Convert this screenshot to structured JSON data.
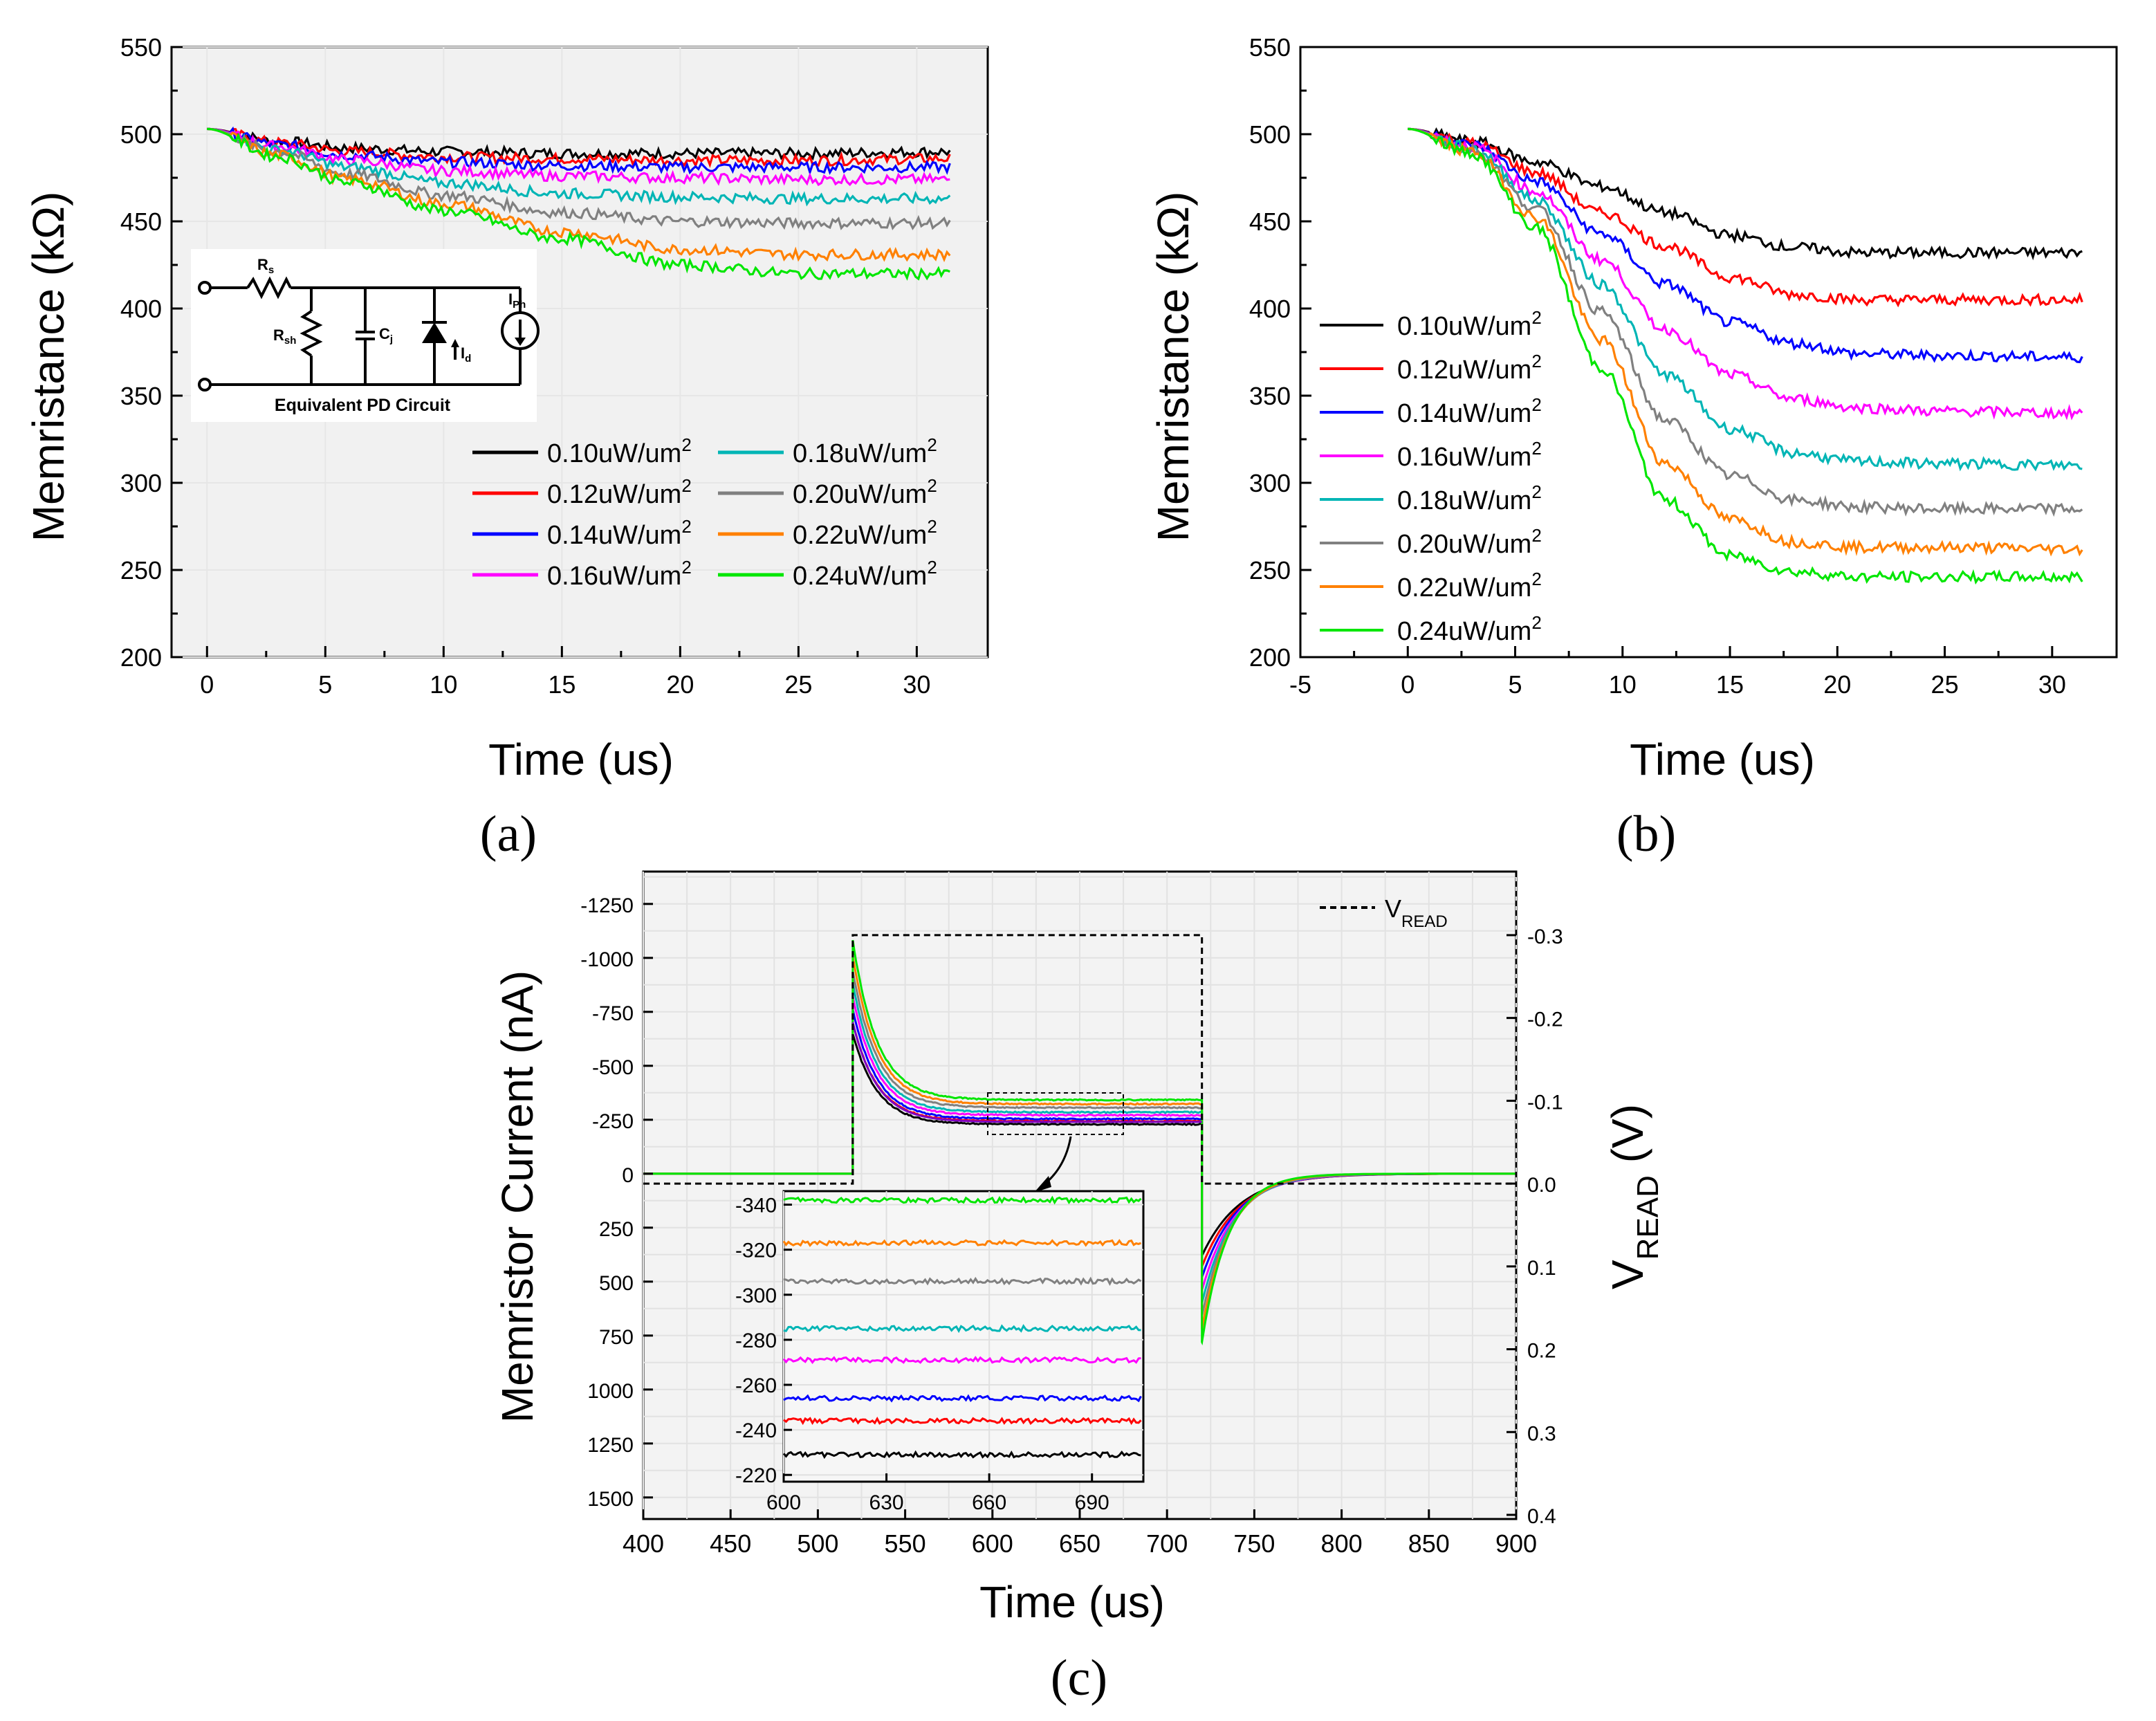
{
  "figure": {
    "panel_labels": [
      "(a)",
      "(b)",
      "(c)"
    ]
  },
  "inset_circuit": {
    "title": "Equivalent PD Circuit",
    "labels": {
      "rs": "R",
      "rs_sub": "s",
      "rsh": "R",
      "rsh_sub": "sh",
      "cj": "C",
      "cj_sub": "j",
      "id": "I",
      "id_sub": "d",
      "iph": "I",
      "iph_sub": "Ph"
    }
  },
  "colors": {
    "0.10": "#000000",
    "0.12": "#ff0000",
    "0.14": "#0000ff",
    "0.16": "#ff00ff",
    "0.18": "#00b5b5",
    "0.20": "#808080",
    "0.22": "#ff8000",
    "0.24": "#00e600",
    "grid": "#e6e6e6",
    "plot_bg": "#ebebeb",
    "vread": "#000000",
    "purple": "#8000c0"
  },
  "chart_data": [
    {
      "id": "a",
      "type": "line",
      "xlabel": "Time (us)",
      "ylabel": "Memristance (kΩ)",
      "xlim": [
        -1.5,
        33
      ],
      "ylim": [
        200,
        550
      ],
      "xticks": [
        0,
        5,
        10,
        15,
        20,
        25,
        30
      ],
      "yticks": [
        200,
        250,
        300,
        350,
        400,
        450,
        500,
        550
      ],
      "grid": true,
      "legend_position": "bottom-right, two columns",
      "series": [
        {
          "name": "0.10uW/um",
          "sup": "2",
          "key": "0.10",
          "x": [
            0,
            3,
            6,
            10,
            15,
            20,
            25,
            31.4
          ],
          "values": [
            503,
            496,
            492,
            490,
            489,
            489,
            489,
            490
          ]
        },
        {
          "name": "0.12uW/um",
          "sup": "2",
          "key": "0.12",
          "x": [
            0,
            3,
            6,
            10,
            15,
            20,
            25,
            31.4
          ],
          "values": [
            503,
            495,
            490,
            487,
            486,
            485,
            485,
            486
          ]
        },
        {
          "name": "0.14uW/um",
          "sup": "2",
          "key": "0.14",
          "x": [
            0,
            3,
            6,
            10,
            15,
            20,
            25,
            31.4
          ],
          "values": [
            503,
            494,
            488,
            484,
            482,
            481,
            481,
            481
          ]
        },
        {
          "name": "0.16uW/um",
          "sup": "2",
          "key": "0.16",
          "x": [
            0,
            3,
            6,
            10,
            15,
            20,
            25,
            31.4
          ],
          "values": [
            503,
            493,
            485,
            479,
            476,
            475,
            474,
            474
          ]
        },
        {
          "name": "0.18uW/um",
          "sup": "2",
          "key": "0.18",
          "x": [
            0,
            3,
            6,
            10,
            15,
            20,
            25,
            31.4
          ],
          "values": [
            503,
            491,
            481,
            472,
            466,
            464,
            463,
            463
          ]
        },
        {
          "name": "0.20uW/um",
          "sup": "2",
          "key": "0.20",
          "x": [
            0,
            3,
            6,
            10,
            15,
            20,
            25,
            31.4
          ],
          "values": [
            503,
            490,
            477,
            465,
            455,
            450,
            449,
            449
          ]
        },
        {
          "name": "0.22uW/um",
          "sup": "2",
          "key": "0.22",
          "x": [
            0,
            3,
            6,
            10,
            15,
            20,
            25,
            31.4
          ],
          "values": [
            503,
            488,
            474,
            460,
            444,
            434,
            431,
            431
          ]
        },
        {
          "name": "0.24uW/um",
          "sup": "2",
          "key": "0.24",
          "x": [
            0,
            3,
            6,
            10,
            15,
            20,
            25,
            31.4
          ],
          "values": [
            503,
            487,
            472,
            456,
            440,
            425,
            420,
            420
          ]
        }
      ]
    },
    {
      "id": "b",
      "type": "line",
      "xlabel": "Time (us)",
      "ylabel": "Memristance (kΩ)",
      "xlim": [
        -5,
        33
      ],
      "ylim": [
        200,
        550
      ],
      "xticks": [
        -5,
        0,
        5,
        10,
        15,
        20,
        25,
        30
      ],
      "yticks": [
        200,
        250,
        300,
        350,
        400,
        450,
        500,
        550
      ],
      "grid": false,
      "legend_position": "left, middle",
      "series": [
        {
          "name": "0.10uW/um",
          "sup": "2",
          "key": "0.10",
          "x": [
            0,
            3,
            6,
            9,
            12,
            15,
            18,
            21,
            25,
            31.4
          ],
          "values": [
            503,
            496,
            484,
            470,
            455,
            442,
            435,
            432,
            432,
            432
          ]
        },
        {
          "name": "0.12uW/um",
          "sup": "2",
          "key": "0.12",
          "x": [
            0,
            3,
            6,
            9,
            12,
            15,
            18,
            21,
            25,
            31.4
          ],
          "values": [
            503,
            495,
            478,
            455,
            436,
            418,
            408,
            405,
            405,
            405
          ]
        },
        {
          "name": "0.14uW/um",
          "sup": "2",
          "key": "0.14",
          "x": [
            0,
            3,
            6,
            9,
            12,
            15,
            18,
            21,
            25,
            31.4
          ],
          "values": [
            503,
            494,
            473,
            443,
            414,
            392,
            380,
            374,
            373,
            372
          ]
        },
        {
          "name": "0.16uW/um",
          "sup": "2",
          "key": "0.16",
          "x": [
            0,
            3,
            6,
            9,
            12,
            15,
            18,
            21,
            25,
            31.4
          ],
          "values": [
            503,
            493,
            467,
            428,
            388,
            362,
            348,
            343,
            341,
            340
          ]
        },
        {
          "name": "0.18uW/um",
          "sup": "2",
          "key": "0.18",
          "x": [
            0,
            3,
            6,
            9,
            12,
            15,
            18,
            21,
            25,
            31.4
          ],
          "values": [
            503,
            492,
            462,
            414,
            362,
            331,
            317,
            312,
            311,
            310
          ]
        },
        {
          "name": "0.20uW/um",
          "sup": "2",
          "key": "0.20",
          "x": [
            0,
            3,
            6,
            9,
            12,
            15,
            18,
            21,
            25,
            31.4
          ],
          "values": [
            503,
            491,
            457,
            398,
            336,
            304,
            290,
            286,
            285,
            285
          ]
        },
        {
          "name": "0.22uW/um",
          "sup": "2",
          "key": "0.22",
          "x": [
            0,
            3,
            6,
            9,
            12,
            15,
            18,
            21,
            25,
            31.4
          ],
          "values": [
            503,
            490,
            452,
            382,
            311,
            279,
            266,
            263,
            263,
            262
          ]
        },
        {
          "name": "0.24uW/um",
          "sup": "2",
          "key": "0.24",
          "x": [
            0,
            3,
            6,
            9,
            12,
            15,
            18,
            21,
            25,
            31.4
          ],
          "values": [
            503,
            489,
            446,
            366,
            290,
            258,
            249,
            246,
            246,
            246
          ]
        }
      ]
    },
    {
      "id": "c",
      "type": "line",
      "xlabel": "Time (us)",
      "ylabel": "Memristor Current (nA)",
      "y2label": "V",
      "y2label_sub": "READ",
      "y2unit": " (V)",
      "xlim": [
        400,
        900
      ],
      "ylim": [
        1600,
        -1400
      ],
      "y2lim": [
        0.4,
        -0.33
      ],
      "xticks": [
        400,
        450,
        500,
        550,
        600,
        650,
        700,
        750,
        800,
        850,
        900
      ],
      "yticks": [
        -1250,
        -1000,
        -750,
        -500,
        -250,
        0,
        250,
        500,
        750,
        1000,
        1250,
        1500
      ],
      "y2ticks": [
        -0.3,
        -0.2,
        -0.1,
        0.0,
        0.1,
        0.2,
        0.3,
        0.4
      ],
      "y2ticklabels": [
        "-0.3",
        "-0.2",
        "-0.1",
        "0.0",
        "0.1",
        "0.2",
        "0.3",
        "0.4"
      ],
      "grid": true,
      "legend": {
        "name": "V",
        "sub": "READ"
      },
      "vread": {
        "x": [
          400,
          520,
          520,
          720,
          720,
          900
        ],
        "values": [
          0,
          0,
          -0.3,
          -0.3,
          0,
          0
        ]
      },
      "pulse_start": 520,
      "pulse_end": 720,
      "peak_current": [
        -650,
        -700,
        -760,
        -820,
        -880,
        -940,
        -1010,
        -1080
      ],
      "steady_current": [
        -229,
        -244,
        -254,
        -271,
        -285,
        -306,
        -323,
        -342
      ],
      "negative_peak": [
        380,
        430,
        480,
        540,
        600,
        660,
        720,
        780
      ],
      "inset": {
        "xlim": [
          600,
          705
        ],
        "ylim": [
          -217,
          -346
        ],
        "xticks": [
          600,
          630,
          660,
          690
        ],
        "yticks": [
          -220,
          -240,
          -260,
          -280,
          -300,
          -320,
          -340
        ],
        "levels": [
          -229,
          -244,
          -254,
          -271,
          -285,
          -306,
          -323,
          -342
        ]
      }
    }
  ]
}
